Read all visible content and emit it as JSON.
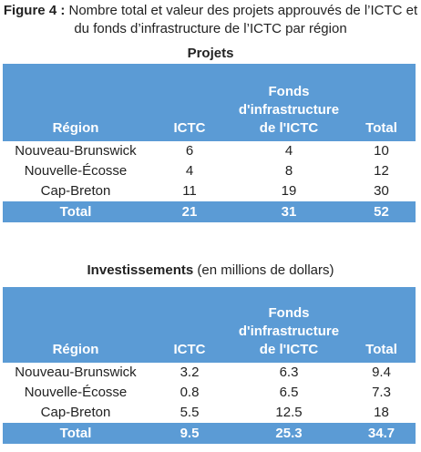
{
  "header": {
    "label": "Figure 4 :",
    "title": "Nombre total et valeur des projets approuvés de l’ICTC et du fonds d’infrastructure de l’ICTC par région"
  },
  "tables": [
    {
      "caption": "Projets",
      "columns": [
        "Région",
        "ICTC",
        "Fonds d'infrastructure de l'ICTC",
        "Total"
      ],
      "rows": [
        [
          "Nouveau-Brunswick",
          6,
          4,
          10
        ],
        [
          "Nouvelle-Écosse",
          4,
          8,
          12
        ],
        [
          "Cap-Breton",
          11,
          19,
          30
        ]
      ],
      "total": [
        "Total",
        21,
        31,
        52
      ]
    },
    {
      "caption": "Investissements",
      "caption_note": "(en millions de dollars)",
      "columns": [
        "Région",
        "ICTC",
        "Fonds d'infrastructure de l'ICTC",
        "Total"
      ],
      "rows": [
        [
          "Nouveau-Brunswick",
          3.2,
          6.3,
          9.4
        ],
        [
          "Nouvelle-Écosse",
          0.8,
          6.5,
          7.3
        ],
        [
          "Cap-Breton",
          5.5,
          12.5,
          18
        ]
      ],
      "total": [
        "Total",
        9.5,
        25.3,
        34.7
      ]
    }
  ]
}
